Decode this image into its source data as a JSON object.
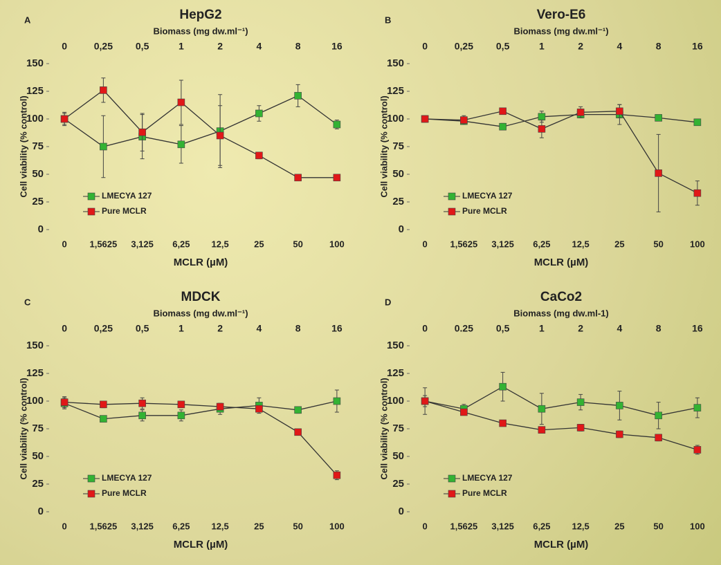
{
  "chart_data": [
    {
      "type": "line",
      "panel": "A",
      "title": "HepG2",
      "top_axis_label": "Biomass (mg dw.ml⁻¹)",
      "top_categories": [
        "0",
        "0,25",
        "0,5",
        "1",
        "2",
        "4",
        "8",
        "16"
      ],
      "categories": [
        "0",
        "1,5625",
        "3,125",
        "6,25",
        "12,5",
        "25",
        "50",
        "100"
      ],
      "x_label": "MCLR (µM)",
      "y_label": "Cell viability (% control)",
      "ylim": [
        0,
        150
      ],
      "yticks": [
        0,
        25,
        50,
        75,
        100,
        125,
        150
      ],
      "series": [
        {
          "name": "LMECYA 127",
          "color": "#33b233",
          "values": [
            100,
            75,
            84,
            77,
            89,
            105,
            121,
            95
          ],
          "errors": [
            5,
            28,
            20,
            17,
            33,
            7,
            10,
            4
          ]
        },
        {
          "name": "Pure MCLR",
          "color": "#e01818",
          "values": [
            100,
            126,
            88,
            115,
            85,
            67,
            47,
            47
          ],
          "errors": [
            6,
            11,
            17,
            20,
            27,
            3,
            1,
            1
          ]
        }
      ]
    },
    {
      "type": "line",
      "panel": "B",
      "title": "Vero-E6",
      "top_axis_label": "Biomass (mg dw.ml⁻¹)",
      "top_categories": [
        "0",
        "0,25",
        "0,5",
        "1",
        "2",
        "4",
        "8",
        "16"
      ],
      "categories": [
        "0",
        "1,5625",
        "3,125",
        "6,25",
        "12,5",
        "25",
        "50",
        "100"
      ],
      "x_label": "MCLR (µM)",
      "y_label": "Cell viability (% control)",
      "ylim": [
        0,
        150
      ],
      "yticks": [
        0,
        25,
        50,
        75,
        100,
        125,
        150
      ],
      "series": [
        {
          "name": "LMECYA 127",
          "color": "#33b233",
          "values": [
            100,
            98,
            93,
            102,
            104,
            104,
            101,
            97
          ],
          "errors": [
            3,
            3,
            3,
            5,
            3,
            9,
            2,
            2
          ]
        },
        {
          "name": "Pure MCLR",
          "color": "#e01818",
          "values": [
            100,
            99,
            107,
            91,
            106,
            107,
            51,
            33
          ],
          "errors": [
            2,
            4,
            2,
            8,
            5,
            6,
            35,
            11
          ]
        }
      ]
    },
    {
      "type": "line",
      "panel": "C",
      "title": "MDCK",
      "top_axis_label": "Biomass (mg dw.ml⁻¹)",
      "top_categories": [
        "0",
        "0,25",
        "0,5",
        "1",
        "2",
        "4",
        "8",
        "16"
      ],
      "categories": [
        "0",
        "1,5625",
        "3,125",
        "6,25",
        "12,5",
        "25",
        "50",
        "100"
      ],
      "x_label": "MCLR (µM)",
      "y_label": "Cell viability (% control)",
      "ylim": [
        0,
        150
      ],
      "yticks": [
        0,
        25,
        50,
        75,
        100,
        125,
        150
      ],
      "series": [
        {
          "name": "LMECYA 127",
          "color": "#33b233",
          "values": [
            98,
            84,
            87,
            87,
            93,
            96,
            92,
            100
          ],
          "errors": [
            5,
            2,
            5,
            5,
            5,
            7,
            3,
            10
          ]
        },
        {
          "name": "Pure MCLR",
          "color": "#e01818",
          "values": [
            99,
            97,
            98,
            97,
            95,
            93,
            72,
            33
          ],
          "errors": [
            5,
            3,
            5,
            3,
            3,
            3,
            2,
            4
          ]
        }
      ]
    },
    {
      "type": "line",
      "panel": "D",
      "title": "CaCo2",
      "top_axis_label": "Biomass (mg dw.ml-1)",
      "top_categories": [
        "0",
        "0.25",
        "0,5",
        "1",
        "2",
        "4",
        "8",
        "16"
      ],
      "categories": [
        "0",
        "1,5625",
        "3,125",
        "6,25",
        "12,5",
        "25",
        "50",
        "100"
      ],
      "x_label": "MCLR (µM)",
      "y_label": "Cell viability (% control)",
      "ylim": [
        0,
        150
      ],
      "yticks": [
        0,
        25,
        50,
        75,
        100,
        125,
        150
      ],
      "series": [
        {
          "name": "LMECYA 127",
          "color": "#33b233",
          "values": [
            100,
            93,
            113,
            93,
            99,
            96,
            87,
            94
          ],
          "errors": [
            12,
            4,
            13,
            14,
            7,
            13,
            12,
            9
          ]
        },
        {
          "name": "Pure MCLR",
          "color": "#e01818",
          "values": [
            100,
            90,
            80,
            74,
            76,
            70,
            67,
            56
          ],
          "errors": [
            5,
            2,
            2,
            2,
            3,
            3,
            3,
            4
          ]
        }
      ]
    }
  ]
}
